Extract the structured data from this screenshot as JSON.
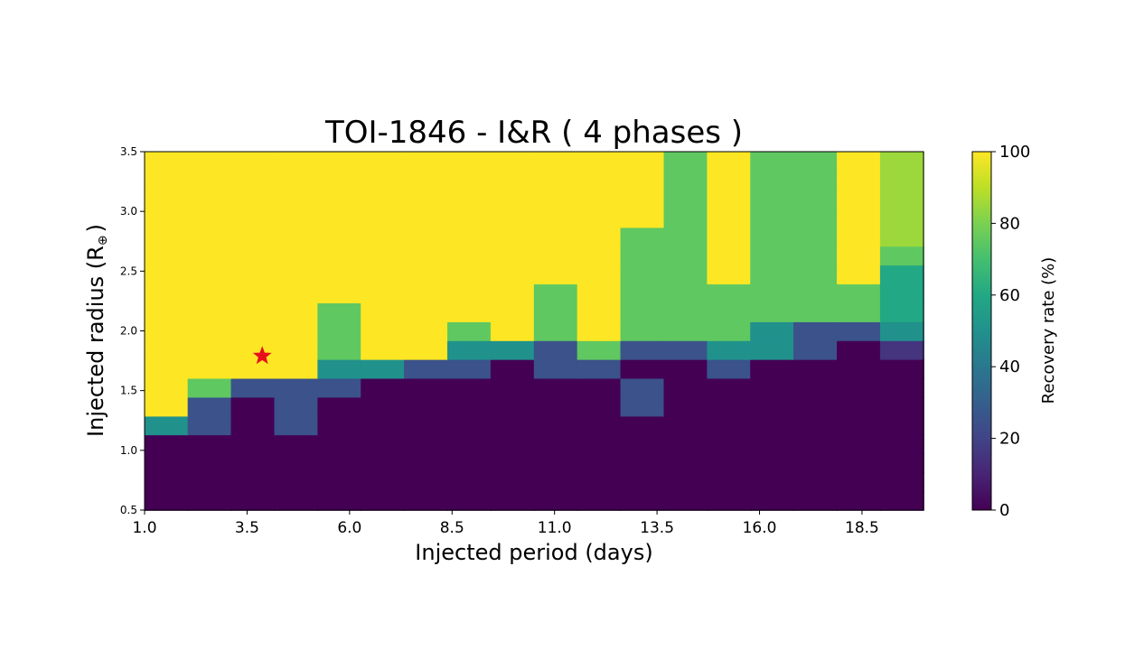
{
  "chart_data": {
    "type": "heatmap",
    "title": "TOI-1846  - I&R ( 4 phases )",
    "xlabel": "Injected period (days)",
    "ylabel": "Injected radius (R",
    "ylabel_symbol": "⊕",
    "ylabel_close": ")",
    "xlim": [
      1.0,
      20.0
    ],
    "ylim": [
      0.5,
      3.5
    ],
    "xticks": [
      1.0,
      3.5,
      6.0,
      8.5,
      11.0,
      13.5,
      16.0,
      18.5
    ],
    "xtick_labels": [
      "1.0",
      "3.5",
      "6.0",
      "8.5",
      "11.0",
      "13.5",
      "16.0",
      "18.5"
    ],
    "yticks": [
      0.5,
      1.0,
      1.5,
      2.0,
      2.5,
      3.0,
      3.5
    ],
    "ytick_labels": [
      "0.5",
      "1.0",
      "1.5",
      "2.0",
      "2.5",
      "3.0",
      "3.5"
    ],
    "colormap": "viridis",
    "colorbar": {
      "label": "Recovery rate (%)",
      "range": [
        0,
        100
      ],
      "ticks": [
        0,
        20,
        40,
        60,
        80,
        100
      ],
      "tick_labels": [
        "0",
        "20",
        "40",
        "60",
        "80",
        "100"
      ]
    },
    "x_edges": [
      1.0,
      2.056,
      3.111,
      4.167,
      5.222,
      6.278,
      7.333,
      8.389,
      9.444,
      10.5,
      11.556,
      12.611,
      13.667,
      14.722,
      15.778,
      16.833,
      17.889,
      18.944,
      20.0
    ],
    "y_edges": [
      0.5,
      0.658,
      0.816,
      0.974,
      1.132,
      1.289,
      1.447,
      1.605,
      1.763,
      1.921,
      2.079,
      2.237,
      2.395,
      2.553,
      2.711,
      2.868,
      3.026,
      3.184,
      3.342,
      3.5
    ],
    "grid_note": "rows bottom (y=0.5) to top (y=3.5); columns left to right",
    "values": [
      [
        0,
        0,
        0,
        0,
        0,
        0,
        0,
        0,
        0,
        0,
        0,
        0,
        0,
        0,
        0,
        0,
        0,
        0
      ],
      [
        0,
        0,
        0,
        0,
        0,
        0,
        0,
        0,
        0,
        0,
        0,
        0,
        0,
        0,
        0,
        0,
        0,
        0
      ],
      [
        0,
        0,
        0,
        0,
        0,
        0,
        0,
        0,
        0,
        0,
        0,
        0,
        0,
        0,
        0,
        0,
        0,
        0
      ],
      [
        0,
        0,
        0,
        0,
        0,
        0,
        0,
        0,
        0,
        0,
        0,
        0,
        0,
        0,
        0,
        0,
        0,
        0
      ],
      [
        50,
        25,
        0,
        25,
        0,
        0,
        0,
        0,
        0,
        0,
        0,
        0,
        0,
        0,
        0,
        0,
        0,
        0
      ],
      [
        100,
        25,
        0,
        25,
        0,
        0,
        0,
        0,
        0,
        0,
        0,
        25,
        0,
        0,
        0,
        0,
        0,
        0
      ],
      [
        100,
        75,
        25,
        25,
        25,
        0,
        0,
        0,
        0,
        0,
        0,
        25,
        0,
        0,
        0,
        0,
        0,
        0
      ],
      [
        100,
        100,
        100,
        100,
        50,
        50,
        25,
        25,
        0,
        25,
        25,
        0,
        0,
        25,
        0,
        0,
        0,
        0
      ],
      [
        100,
        100,
        100,
        100,
        75,
        100,
        100,
        50,
        50,
        25,
        75,
        25,
        25,
        50,
        50,
        25,
        0,
        15
      ],
      [
        100,
        100,
        100,
        100,
        75,
        100,
        100,
        75,
        100,
        75,
        100,
        75,
        75,
        75,
        50,
        25,
        25,
        50
      ],
      [
        100,
        100,
        100,
        100,
        75,
        100,
        100,
        100,
        100,
        75,
        100,
        75,
        75,
        75,
        75,
        75,
        75,
        60
      ],
      [
        100,
        100,
        100,
        100,
        100,
        100,
        100,
        100,
        100,
        75,
        100,
        75,
        75,
        75,
        75,
        75,
        75,
        60
      ],
      [
        100,
        100,
        100,
        100,
        100,
        100,
        100,
        100,
        100,
        100,
        100,
        75,
        75,
        100,
        75,
        75,
        100,
        60
      ],
      [
        100,
        100,
        100,
        100,
        100,
        100,
        100,
        100,
        100,
        100,
        100,
        75,
        75,
        100,
        75,
        75,
        100,
        75
      ],
      [
        100,
        100,
        100,
        100,
        100,
        100,
        100,
        100,
        100,
        100,
        100,
        75,
        75,
        100,
        75,
        75,
        100,
        85
      ],
      [
        100,
        100,
        100,
        100,
        100,
        100,
        100,
        100,
        100,
        100,
        100,
        100,
        75,
        100,
        75,
        75,
        100,
        85
      ],
      [
        100,
        100,
        100,
        100,
        100,
        100,
        100,
        100,
        100,
        100,
        100,
        100,
        75,
        100,
        75,
        75,
        100,
        85
      ],
      [
        100,
        100,
        100,
        100,
        100,
        100,
        100,
        100,
        100,
        100,
        100,
        100,
        75,
        100,
        75,
        75,
        100,
        85
      ],
      [
        100,
        100,
        100,
        100,
        100,
        100,
        100,
        100,
        100,
        100,
        100,
        100,
        75,
        100,
        75,
        75,
        100,
        85
      ]
    ],
    "marker": {
      "shape": "star",
      "x": 3.87,
      "y": 1.79,
      "color": "#e8101c"
    }
  }
}
